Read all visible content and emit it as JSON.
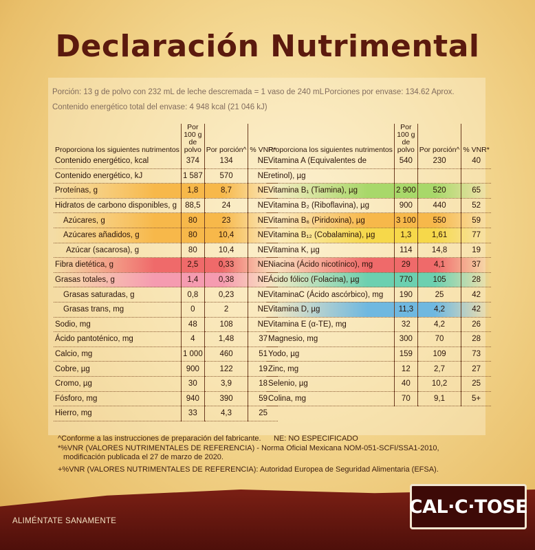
{
  "title": "Declaración Nutrimental",
  "portion": "Porción: 13 g de polvo con 232 mL de leche descremada = 1 vaso de 240 mL",
  "portions_per_pack": "Porciones por envase: 134.62 Aprox.",
  "energy_total": "Contenido energético total del envase: 4 948 kcal  (21 046 kJ)",
  "left_headers": {
    "name": "Proporciona los siguientes nutrimentos",
    "per100": "Por 100 g de polvo",
    "per_portion": "Por porción^",
    "vnr": "% VNR*"
  },
  "right_headers": {
    "name": "Proporciona los siguientes nutrimentos",
    "per100": "Por 100 g de polvo",
    "per_portion": "Por porción^",
    "vnr": "% VNR*"
  },
  "left_rows": [
    {
      "name": "Contenido energético, kcal",
      "per100": "374",
      "portion": "134",
      "vnr": "NE"
    },
    {
      "name": "Contenido energético, kJ",
      "per100": "1 587",
      "portion": "570",
      "vnr": "NE"
    },
    {
      "name": "Proteínas, g",
      "per100": "1,8",
      "portion": "8,7",
      "vnr": "NE"
    },
    {
      "name": "Hidratos de carbono disponibles, g",
      "per100": "88,5",
      "portion": "24",
      "vnr": "NE"
    },
    {
      "name": "Azúcares, g",
      "per100": "80",
      "portion": "23",
      "vnr": "NE"
    },
    {
      "name": "Azúcares añadidos, g",
      "per100": "80",
      "portion": "10,4",
      "vnr": "NE"
    },
    {
      "name": "Azúcar (sacarosa), g",
      "per100": "80",
      "portion": "10,4",
      "vnr": "NE"
    },
    {
      "name": "Fibra dietética, g",
      "per100": "2,5",
      "portion": "0,33",
      "vnr": "NE"
    },
    {
      "name": "Grasas totales, g",
      "per100": "1,4",
      "portion": "0,38",
      "vnr": "NE"
    },
    {
      "name": "Grasas saturadas, g",
      "per100": "0,8",
      "portion": "0,23",
      "vnr": "NE"
    },
    {
      "name": "Grasas trans, mg",
      "per100": "0",
      "portion": "2",
      "vnr": "NE"
    },
    {
      "name": "Sodio, mg",
      "per100": "48",
      "portion": "108",
      "vnr": "NE"
    },
    {
      "name": "Ácido pantoténico, mg",
      "per100": "4",
      "portion": "1,48",
      "vnr": "37"
    },
    {
      "name": "Calcio, mg",
      "per100": "1 000",
      "portion": "460",
      "vnr": "51"
    },
    {
      "name": "Cobre, µg",
      "per100": "900",
      "portion": "122",
      "vnr": "19"
    },
    {
      "name": "Cromo, µg",
      "per100": "30",
      "portion": "3,9",
      "vnr": "18"
    },
    {
      "name": "Fósforo, mg",
      "per100": "940",
      "portion": "390",
      "vnr": "59"
    },
    {
      "name": "Hierro, mg",
      "per100": "33",
      "portion": "4,3",
      "vnr": "25"
    }
  ],
  "right_rows": [
    {
      "name": "Vitamina A (Equivalentes de",
      "per100": "540",
      "portion": "230",
      "vnr": "40"
    },
    {
      "name": "retinol), µg",
      "per100": "",
      "portion": "",
      "vnr": ""
    },
    {
      "name": "Vitamina B₁ (Tiamina), µg",
      "per100": "2 900",
      "portion": "520",
      "vnr": "65"
    },
    {
      "name": "Vitamina B₂ (Riboflavina), µg",
      "per100": "900",
      "portion": "440",
      "vnr": "52"
    },
    {
      "name": "Vitamina B₆ (Piridoxina), µg",
      "per100": "3 100",
      "portion": "550",
      "vnr": "59"
    },
    {
      "name": "Vitamina B₁₂ (Cobalamina), µg",
      "per100": "1,3",
      "portion": "1,61",
      "vnr": "77"
    },
    {
      "name": "Vitamina K, µg",
      "per100": "114",
      "portion": "14,8",
      "vnr": "19"
    },
    {
      "name": "Niacina (Ácido nicotínico), mg",
      "per100": "29",
      "portion": "4,1",
      "vnr": "37"
    },
    {
      "name": "Ácido fólico (Folacina), µg",
      "per100": "770",
      "portion": "105",
      "vnr": "28"
    },
    {
      "name": "VitaminaC (Ácido ascórbico), mg",
      "per100": "190",
      "portion": "25",
      "vnr": "42"
    },
    {
      "name": "Vitamina D, µg",
      "per100": "11,3",
      "portion": "4,2",
      "vnr": "42"
    },
    {
      "name": "Vitamina E (α-TE), mg",
      "per100": "32",
      "portion": "4,2",
      "vnr": "26"
    },
    {
      "name": "Magnesio, mg",
      "per100": "300",
      "portion": "70",
      "vnr": "28"
    },
    {
      "name": "Yodo, µg",
      "per100": "159",
      "portion": "109",
      "vnr": "73"
    },
    {
      "name": "Zinc, mg",
      "per100": "12",
      "portion": "2,7",
      "vnr": "27"
    },
    {
      "name": "Selenio, µg",
      "per100": "40",
      "portion": "10,2",
      "vnr": "25"
    },
    {
      "name": "Colina, mg",
      "per100": "70",
      "portion": "9,1",
      "vnr": "5+"
    }
  ],
  "highlight_colors": {
    "orange": "#f7b84a",
    "yellow": "#f6d84a",
    "red": "#ef6a6a",
    "pink": "#f59bb0",
    "green": "#a8d86a",
    "teal": "#6cd0b0",
    "blue": "#6fb8e0"
  },
  "notes": {
    "line1": "^Conforme a las instrucciones de preparación del fabricante.",
    "ne": "NE: NO ESPECIFICADO",
    "line2": "*%VNR (VALORES NUTRIMENTALES DE REFERENCIA) - Norma Oficial Mexicana NOM-051-SCFI/SSA1-2010,",
    "line3": "modificación publicada el 27 de marzo de 2020.",
    "line4": "+%VNR (VALORES NUTRIMENTALES DE REFERENCIA): Autoridad Europea de Seguridad Alimentaria (EFSA)."
  },
  "slogan": "ALIMÉNTATE SANAMENTE",
  "logo": "CAL·C·TOSE"
}
